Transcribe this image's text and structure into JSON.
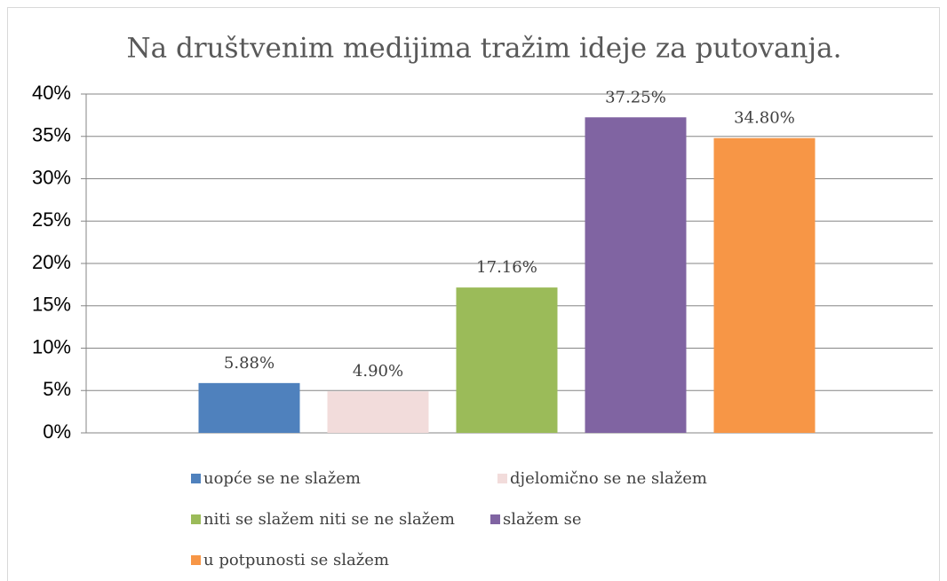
{
  "chart_data": {
    "type": "bar",
    "title": "Na društvenim medijima tražim ideje za putovanja.",
    "series": [
      {
        "name": "uopće se ne slažem",
        "color": "#4f81bd",
        "values": [
          5.88
        ],
        "value_labels": [
          "5.88%"
        ]
      },
      {
        "name": "djelomično se ne slažem",
        "color": "#f2dcdb",
        "values": [
          4.9
        ],
        "value_labels": [
          "4.90%"
        ]
      },
      {
        "name": "niti se slažem niti se ne slažem",
        "color": "#9bbb59",
        "values": [
          17.16
        ],
        "value_labels": [
          "17.16%"
        ]
      },
      {
        "name": "slažem se",
        "color": "#8064a2",
        "values": [
          37.25
        ],
        "value_labels": [
          "37.25%"
        ]
      },
      {
        "name": "u potpunosti se slažem",
        "color": "#f79646",
        "values": [
          34.8
        ],
        "value_labels": [
          "34.80%"
        ]
      }
    ],
    "ylim": [
      0,
      40
    ],
    "yticks": [
      {
        "value": 0,
        "label": "0%"
      },
      {
        "value": 5,
        "label": "5%"
      },
      {
        "value": 10,
        "label": "10%"
      },
      {
        "value": 15,
        "label": "15%"
      },
      {
        "value": 20,
        "label": "20%"
      },
      {
        "value": 25,
        "label": "25%"
      },
      {
        "value": 30,
        "label": "30%"
      },
      {
        "value": 35,
        "label": "35%"
      },
      {
        "value": 40,
        "label": "40%"
      }
    ],
    "grid": true,
    "legend": "bottom"
  }
}
